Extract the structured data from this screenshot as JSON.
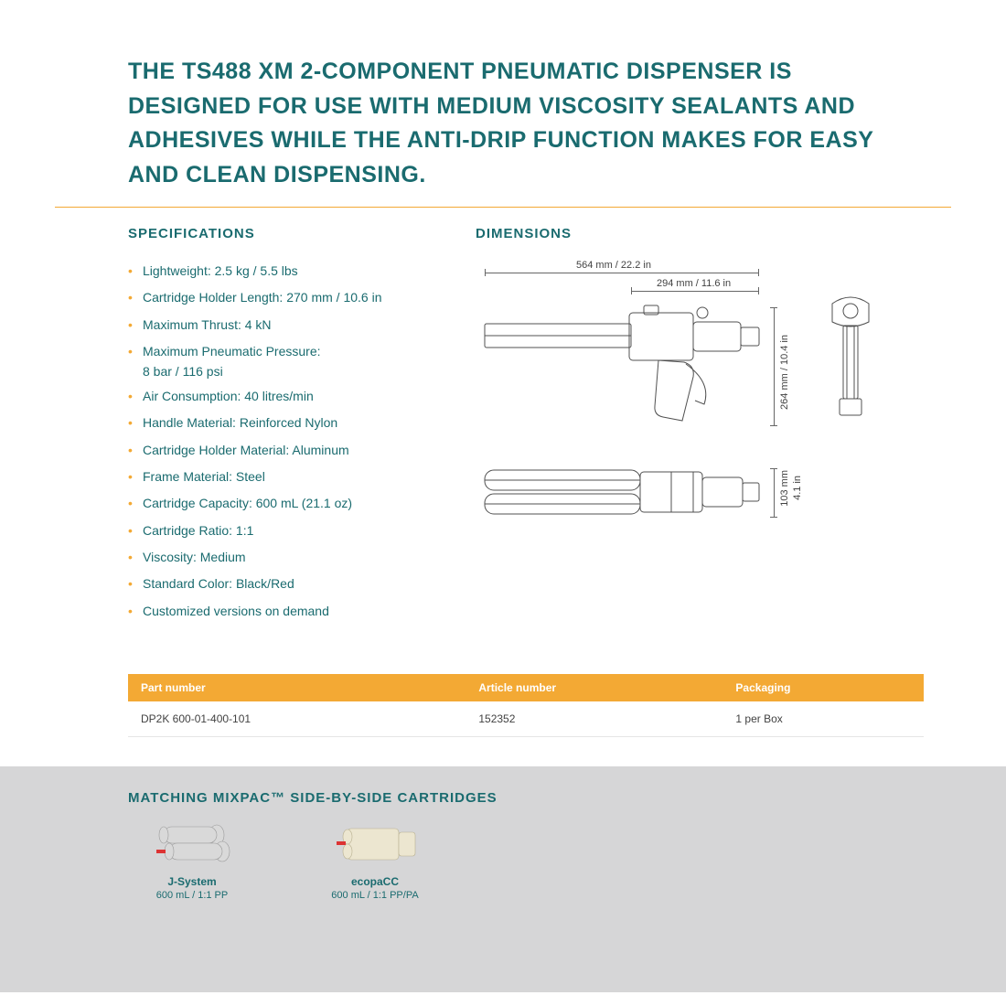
{
  "headline": "THE TS488 XM 2-COMPONENT PNEUMATIC DISPENSER IS DESIGNED FOR USE WITH MEDIUM VISCOSITY SEALANTS AND ADHESIVES WHILE THE ANTI-DRIP FUNCTION MAKES FOR EASY AND CLEAN DISPENSING.",
  "colors": {
    "brand": "#1a6b6f",
    "accent": "#f3a934",
    "text_muted": "#424242",
    "section_bg": "#d6d6d7",
    "border": "#e5e5e5"
  },
  "specs": {
    "title": "SPECIFICATIONS",
    "items": [
      "Lightweight: 2.5 kg / 5.5 lbs",
      "Cartridge Holder Length: 270 mm / 10.6 in",
      "Maximum Thrust: 4 kN",
      "Maximum Pneumatic Pressure:",
      "Air Consumption: 40 litres/min",
      "Handle Material: Reinforced Nylon",
      "Cartridge Holder Material: Aluminum",
      "Frame Material: Steel",
      "Cartridge Capacity: 600 mL (21.1 oz)",
      "Cartridge Ratio: 1:1",
      "Viscosity: Medium",
      "Standard Color: Black/Red",
      "Customized versions on demand"
    ],
    "subline_after_index": 3,
    "subline": "8 bar / 116 psi"
  },
  "dimensions": {
    "title": "DIMENSIONS",
    "labels": {
      "total_length": "564 mm / 22.2 in",
      "rear_length": "294 mm / 11.6 in",
      "height": "264 mm / 10.4 in",
      "top_view_height": "103 mm",
      "top_view_height_in": "4.1 in"
    },
    "diagram": {
      "stroke_color": "#505050",
      "stroke_width": 1.2
    }
  },
  "parts_table": {
    "columns": [
      "Part number",
      "Article number",
      "Packaging"
    ],
    "rows": [
      [
        "DP2K 600-01-400-101",
        "152352",
        "1 per Box"
      ]
    ]
  },
  "matching": {
    "title": "MATCHING MIXPAC™ SIDE-BY-SIDE CARTRIDGES",
    "items": [
      {
        "name": "J-System",
        "sub": "600 mL / 1:1 PP"
      },
      {
        "name": "ecopaCC",
        "sub": "600 mL / 1:1 PP/PA"
      }
    ]
  }
}
